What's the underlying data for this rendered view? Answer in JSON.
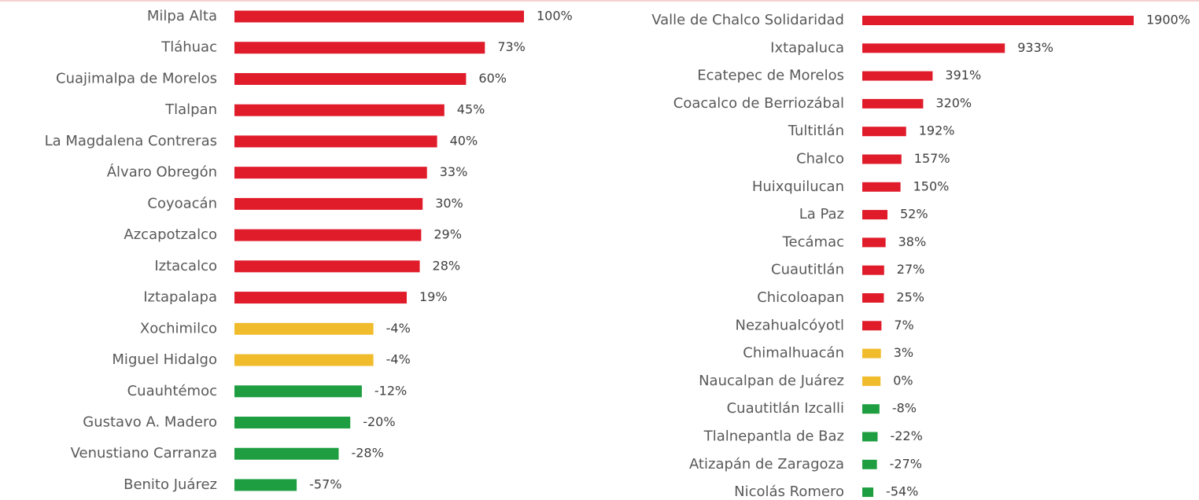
{
  "chart_data": [
    {
      "type": "bar",
      "orientation": "horizontal",
      "categories": [
        "Milpa Alta",
        "Tláhuac",
        "Cuajimalpa de Morelos",
        "Tlalpan",
        "La Magdalena Contreras",
        "Álvaro Obregón",
        "Coyoacán",
        "Azcapotzalco",
        "Iztacalco",
        "Iztapalapa",
        "Xochimilco",
        "Miguel Hidalgo",
        "Cuauhtémoc",
        "Gustavo A. Madero",
        "Venustiano Carranza",
        "Benito Juárez"
      ],
      "values": [
        100,
        73,
        60,
        45,
        40,
        33,
        30,
        29,
        28,
        19,
        -4,
        -4,
        -12,
        -20,
        -28,
        -57
      ],
      "value_labels": [
        "100%",
        "73%",
        "60%",
        "45%",
        "40%",
        "33%",
        "30%",
        "29%",
        "28%",
        "19%",
        "-4%",
        "-4%",
        "-12%",
        "-20%",
        "-28%",
        "-57%"
      ],
      "colors": [
        "#e01b2a",
        "#e01b2a",
        "#e01b2a",
        "#e01b2a",
        "#e01b2a",
        "#e01b2a",
        "#e01b2a",
        "#e01b2a",
        "#e01b2a",
        "#e01b2a",
        "#f0bc2c",
        "#f0bc2c",
        "#1e9e41",
        "#1e9e41",
        "#1e9e41",
        "#1e9e41"
      ],
      "xlim": [
        -100,
        100
      ]
    },
    {
      "type": "bar",
      "orientation": "horizontal",
      "categories": [
        "Valle de Chalco Solidaridad",
        "Ixtapaluca",
        "Ecatepec de Morelos",
        "Coacalco de Berriozábal",
        "Tultitlán",
        "Chalco",
        "Huixquilucan",
        "La Paz",
        "Tecámac",
        "Cuautitlán",
        "Chicoloapan",
        "Nezahualcóyotl",
        "Chimalhuacán",
        "Naucalpan de Juárez",
        "Cuautitlán Izcalli",
        "Tlalnepantla de Baz",
        "Atizapán de Zaragoza",
        "Nicolás Romero"
      ],
      "values": [
        1900,
        933,
        391,
        320,
        192,
        157,
        150,
        52,
        38,
        27,
        25,
        7,
        3,
        0,
        -8,
        -22,
        -27,
        -54
      ],
      "value_labels": [
        "1900%",
        "933%",
        "391%",
        "320%",
        "192%",
        "157%",
        "150%",
        "52%",
        "38%",
        "27%",
        "25%",
        "7%",
        "3%",
        "0%",
        "-8%",
        "-22%",
        "-27%",
        "-54%"
      ],
      "colors": [
        "#e01b2a",
        "#e01b2a",
        "#e01b2a",
        "#e01b2a",
        "#e01b2a",
        "#e01b2a",
        "#e01b2a",
        "#e01b2a",
        "#e01b2a",
        "#e01b2a",
        "#e01b2a",
        "#e01b2a",
        "#f0bc2c",
        "#f0bc2c",
        "#1e9e41",
        "#1e9e41",
        "#1e9e41",
        "#1e9e41"
      ],
      "xlim": [
        -137,
        1900
      ]
    }
  ]
}
